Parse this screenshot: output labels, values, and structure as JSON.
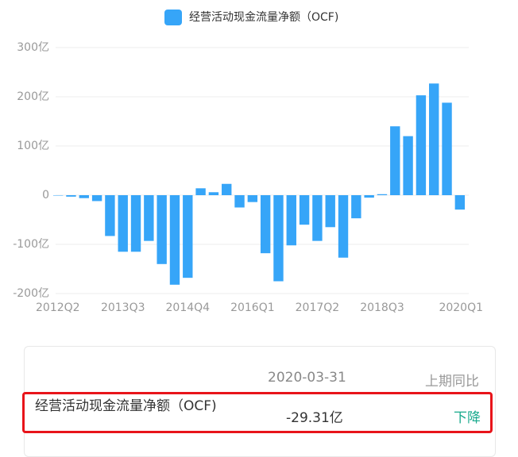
{
  "chart_data": {
    "type": "bar",
    "legend": "经营活动现金流量净额（OCF)",
    "color": "#36a5f8",
    "categories": [
      "2012Q2",
      null,
      null,
      null,
      null,
      "2013Q3",
      null,
      null,
      null,
      null,
      "2014Q4",
      null,
      null,
      null,
      null,
      "2016Q1",
      null,
      null,
      null,
      null,
      "2017Q2",
      null,
      null,
      null,
      null,
      "2018Q3",
      null,
      null,
      null,
      null,
      null,
      "2020Q1"
    ],
    "values": [
      0,
      -3,
      -6,
      -12,
      -83,
      -115,
      -115,
      -93,
      -140,
      -182,
      -168,
      14,
      6,
      23,
      -25,
      -14,
      -118,
      -175,
      -102,
      -60,
      -93,
      -65,
      -127,
      -47,
      -5,
      2,
      140,
      120,
      203,
      227,
      188,
      -29.31
    ],
    "ylim": [
      -200,
      300
    ],
    "yticks": [
      {
        "value": -200,
        "label": "-200亿"
      },
      {
        "value": -100,
        "label": "-100亿"
      },
      0,
      {
        "value": 100,
        "label": "100亿"
      },
      {
        "value": 200,
        "label": "200亿"
      },
      {
        "value": 300,
        "label": "300亿"
      }
    ],
    "grid": true
  },
  "table": {
    "header": [
      "2020-03-31",
      "上期同比"
    ],
    "rows": [
      [
        "经营活动现金流量净额（OCF)",
        "-29.31亿",
        "下降"
      ]
    ]
  }
}
